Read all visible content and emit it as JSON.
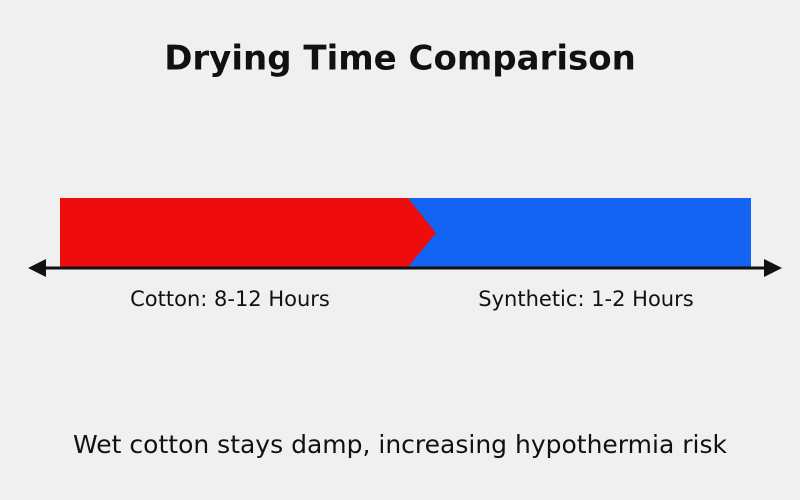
{
  "header": {
    "title": "Drying Time Comparison"
  },
  "labels": {
    "left": "Cotton: 8-12 Hours",
    "right": "Synthetic: 1-2 Hours"
  },
  "caption": "Wet cotton stays damp, increasing hypothermia risk"
}
